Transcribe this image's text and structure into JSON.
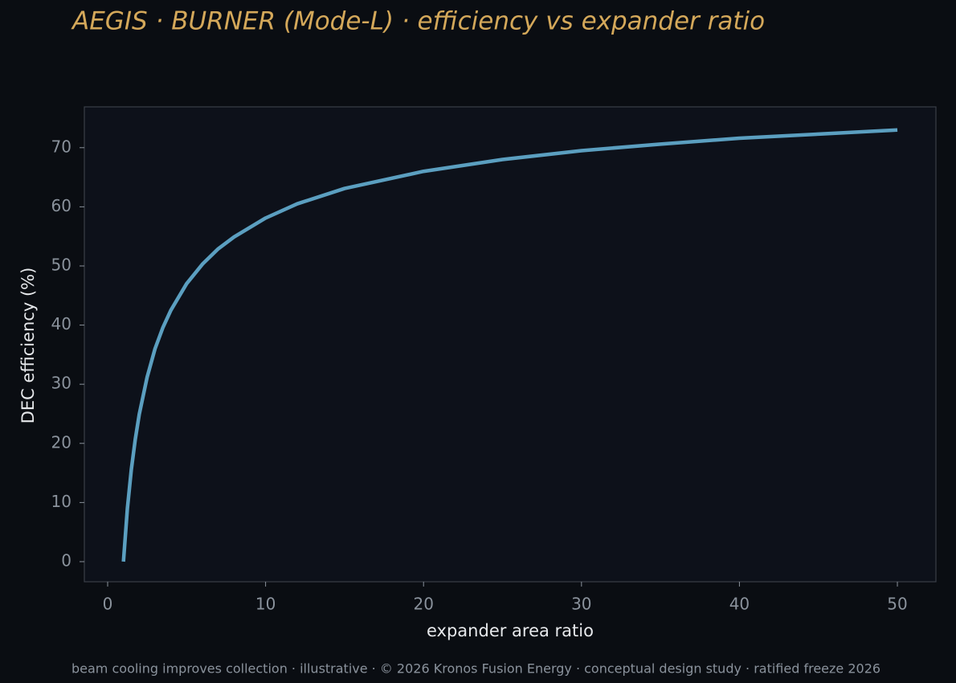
{
  "chart_data": {
    "type": "line",
    "title": "AEGIS · BURNER (Mode-L)  ·  efficiency vs expander ratio",
    "x_label": "expander area ratio",
    "y_label": "DEC efficiency (%)",
    "footer": "beam cooling improves collection · illustrative · © 2026 Kronos Fusion Energy · conceptual design study · ratified freeze 2026",
    "x": [
      1,
      1.25,
      1.5,
      1.75,
      2,
      2.5,
      3,
      3.5,
      4,
      5,
      6,
      7,
      8,
      10,
      12,
      15,
      20,
      25,
      30,
      35,
      40,
      45,
      50
    ],
    "series": [
      {
        "color": "#5b9fc0",
        "values": [
          0,
          9.0,
          15.6,
          20.7,
          24.9,
          31.2,
          36.0,
          39.6,
          42.5,
          47.0,
          50.3,
          52.9,
          54.9,
          58.1,
          60.5,
          63.1,
          66.0,
          68.0,
          69.5,
          70.6,
          71.6,
          72.3,
          73.0
        ]
      }
    ],
    "xlim": [
      -1.475,
      52.44
    ],
    "ylim": [
      -3.4,
      76.9
    ],
    "xticks": [
      0,
      10,
      20,
      30,
      40,
      50
    ],
    "yticks": [
      0,
      10,
      20,
      30,
      40,
      50,
      60,
      70
    ]
  }
}
